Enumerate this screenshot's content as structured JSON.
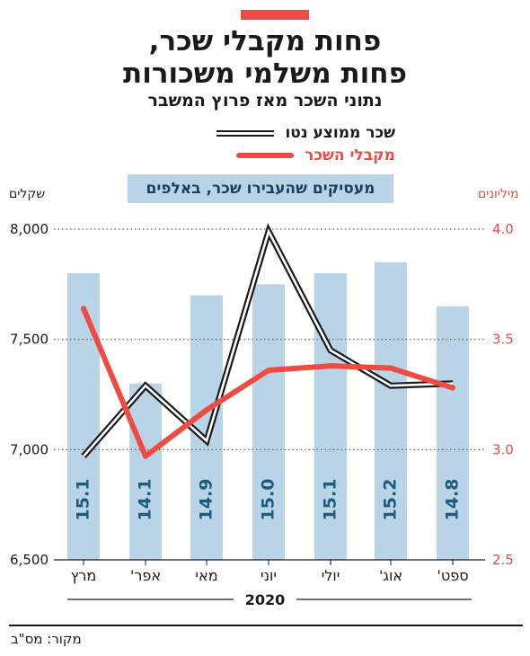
{
  "header": {
    "title_line1": "פחות מקבלי שכר,",
    "title_line2": "פחות משלמי משכורות",
    "subtitle": "נתוני השכר מאז פרוץ המשבר"
  },
  "legend": {
    "salary_label": "שכר ממוצע נטו",
    "recipients_label": "מקבלי השכר",
    "employers_label": "מעסיקים שהעבירו שכר, באלפים"
  },
  "units": {
    "left": "שקלים",
    "right": "מיליונים"
  },
  "source": "מקור: מס\"ב",
  "colors": {
    "accent": "#ef4b43",
    "bar": "#b8d4e6",
    "bar_label": "#1b5c80",
    "line": "#1a1a1a"
  },
  "chart_data": {
    "type": "bar",
    "categories": [
      "מרץ",
      "אפר'",
      "מאי",
      "יוני",
      "יולי",
      "אוג'",
      "ספט'"
    ],
    "year_label": "2020",
    "left_axis": {
      "ticks": [
        "6,500",
        "7,000",
        "7,500",
        "8,000"
      ],
      "ylim": [
        6500,
        8000
      ]
    },
    "right_axis": {
      "ticks": [
        "2.5",
        "3.0",
        "3.5",
        "4.0"
      ],
      "ylim": [
        2.5,
        4.0
      ]
    },
    "series": [
      {
        "name": "מעסיקים שהעבירו שכר, באלפים",
        "type": "bar",
        "values": [
          15.1,
          14.1,
          14.9,
          15.0,
          15.1,
          15.2,
          14.8
        ],
        "labels": [
          "15.1",
          "14.1",
          "14.9",
          "15.0",
          "15.1",
          "15.2",
          "14.8"
        ]
      },
      {
        "name": "שכר ממוצע נטו",
        "type": "line",
        "axis": "left",
        "values": [
          6970,
          7290,
          7040,
          7990,
          7450,
          7290,
          7300
        ]
      },
      {
        "name": "מקבלי השכר",
        "type": "line",
        "axis": "right",
        "values": [
          3.64,
          2.97,
          3.18,
          3.36,
          3.38,
          3.37,
          3.28
        ]
      }
    ]
  }
}
